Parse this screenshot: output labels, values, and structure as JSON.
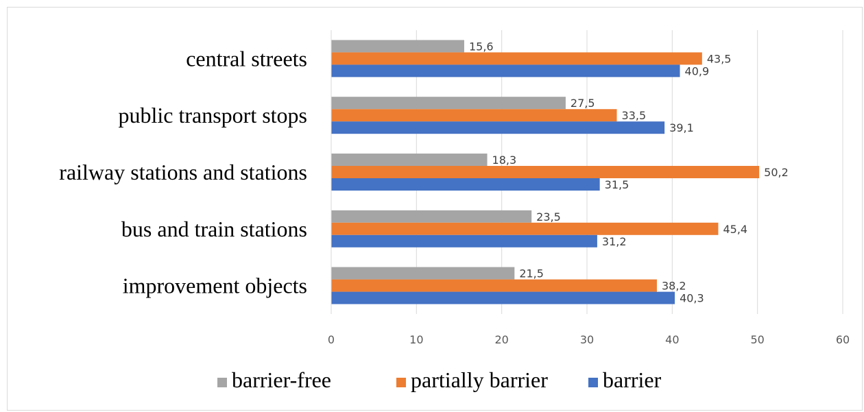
{
  "chart_data": {
    "type": "bar",
    "orientation": "horizontal",
    "categories": [
      "central streets",
      "public transport stops",
      "railway stations and stations",
      "bus and train stations",
      "improvement objects"
    ],
    "series": [
      {
        "name": "barrier-free",
        "color": "#a5a5a5",
        "values": [
          15.6,
          27.5,
          18.3,
          23.5,
          21.5
        ],
        "labels": [
          "15,6",
          "27,5",
          "18,3",
          "23,5",
          "21,5"
        ]
      },
      {
        "name": "partially barrier",
        "color": "#ed7d31",
        "values": [
          43.5,
          33.5,
          50.2,
          45.4,
          38.2
        ],
        "labels": [
          "43,5",
          "33,5",
          "50,2",
          "45,4",
          "38,2"
        ]
      },
      {
        "name": "barrier",
        "color": "#4472c4",
        "values": [
          40.9,
          39.1,
          31.5,
          31.2,
          40.3
        ],
        "labels": [
          "40,9",
          "39,1",
          "31,5",
          "31,2",
          "40,3"
        ]
      }
    ],
    "xlim": [
      0,
      60
    ],
    "xticks": [
      0,
      10,
      20,
      30,
      40,
      50,
      60
    ],
    "xtick_labels": [
      "0",
      "10",
      "20",
      "30",
      "40",
      "50",
      "60"
    ],
    "grid": true,
    "legend": "bottom"
  }
}
